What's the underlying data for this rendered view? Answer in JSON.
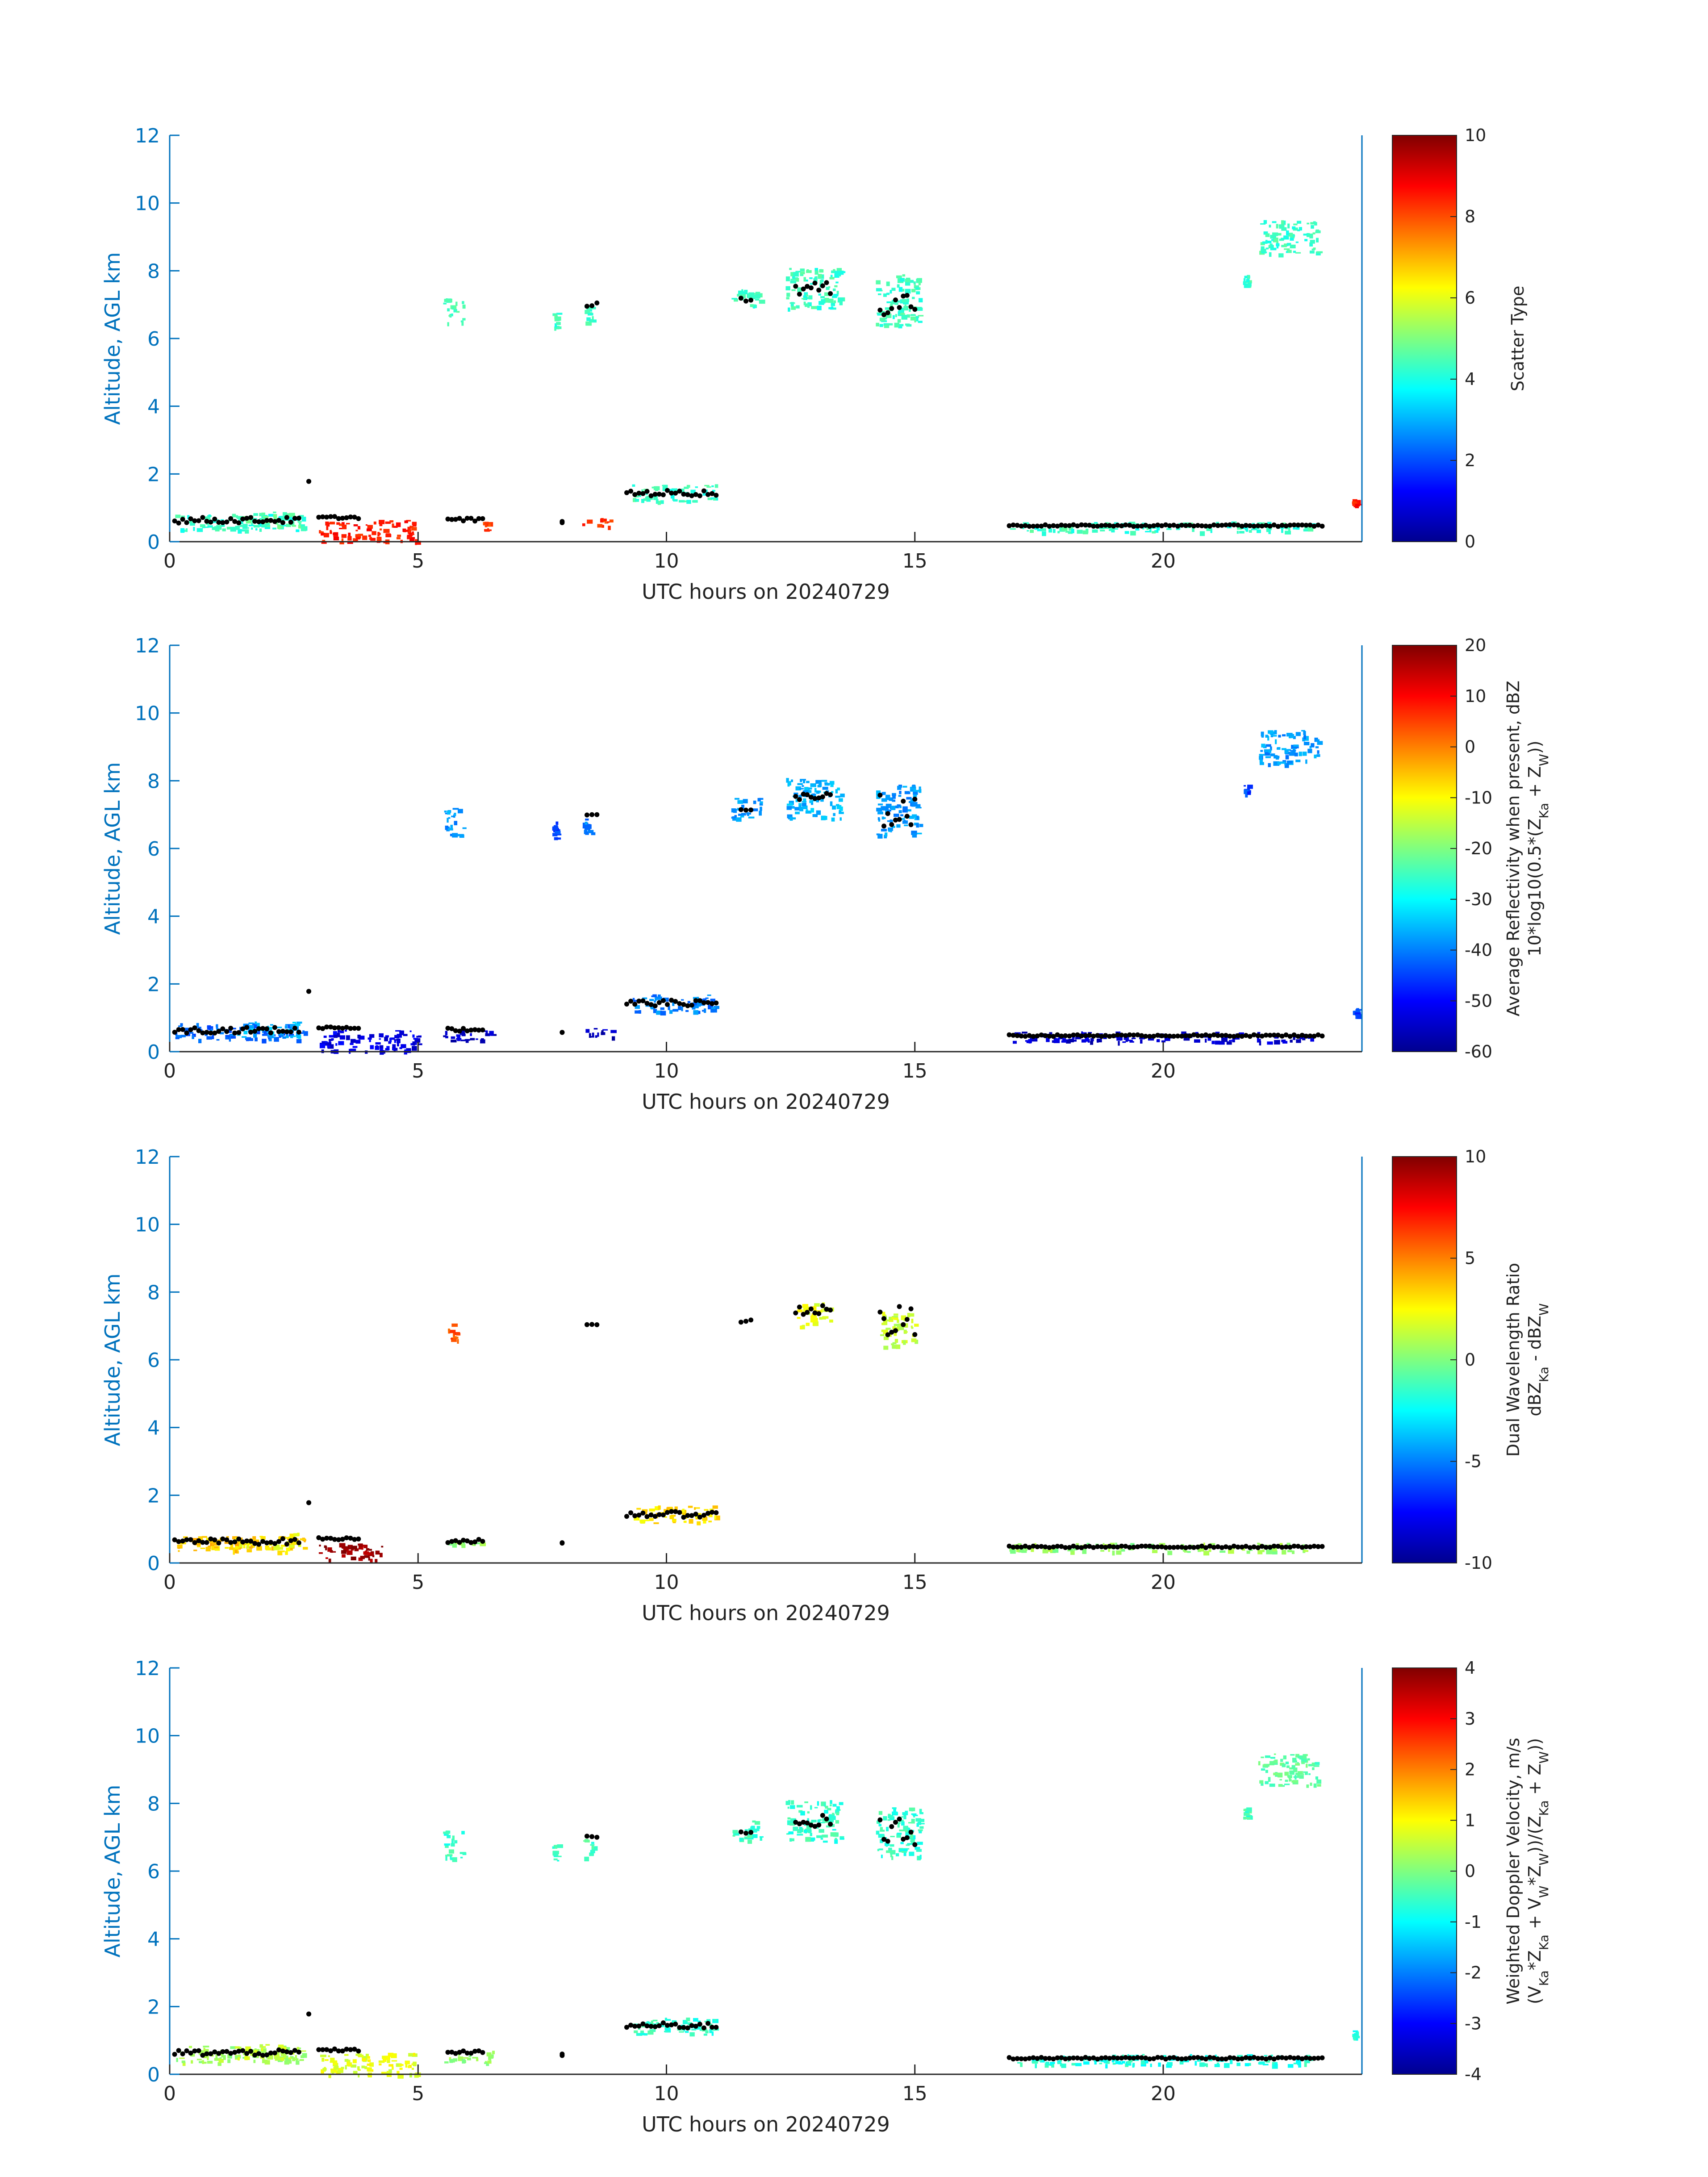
{
  "chart_data": [
    {
      "type": "heatmap",
      "xlabel": "UTC hours on 20240729",
      "ylabel": "Altitude, AGL km",
      "xlim": [
        0,
        24
      ],
      "ylim": [
        0,
        12
      ],
      "xticks": [
        "0",
        "5",
        "10",
        "15",
        "20"
      ],
      "yticks": [
        "0",
        "2",
        "4",
        "6",
        "8",
        "10",
        "12"
      ],
      "colorbar": {
        "label": [
          "Scatter Type"
        ],
        "range": [
          0,
          10
        ],
        "ticks": [
          "0",
          "2",
          "4",
          "6",
          "8",
          "10"
        ],
        "colormap": "jet"
      },
      "regions": [
        {
          "x": [
            0.1,
            2.7
          ],
          "y": [
            0.35,
            0.85
          ],
          "value": 4.2
        },
        {
          "x": [
            1.3,
            2.6
          ],
          "y": [
            0.45,
            0.9
          ],
          "value": 4.6
        },
        {
          "x": [
            3.0,
            5.0
          ],
          "y": [
            0.0,
            0.65
          ],
          "value": 8.5
        },
        {
          "x": [
            6.3,
            6.4
          ],
          "y": [
            0.35,
            0.6
          ],
          "value": 8.2
        },
        {
          "x": [
            8.3,
            8.9
          ],
          "y": [
            0.45,
            0.7
          ],
          "value": 8.2
        },
        {
          "x": [
            5.5,
            5.9
          ],
          "y": [
            6.4,
            7.2
          ],
          "value": 4.3
        },
        {
          "x": [
            7.7,
            7.8
          ],
          "y": [
            6.3,
            6.8
          ],
          "value": 4.3
        },
        {
          "x": [
            8.3,
            8.5
          ],
          "y": [
            6.4,
            7.0
          ],
          "value": 4.3
        },
        {
          "x": [
            9.3,
            11.0
          ],
          "y": [
            1.2,
            1.7
          ],
          "value": 4.3
        },
        {
          "x": [
            11.3,
            11.9
          ],
          "y": [
            6.9,
            7.5
          ],
          "value": 4.3
        },
        {
          "x": [
            12.4,
            13.5
          ],
          "y": [
            6.9,
            8.1
          ],
          "value": 4.3
        },
        {
          "x": [
            14.2,
            15.1
          ],
          "y": [
            6.4,
            7.9
          ],
          "value": 4.3
        },
        {
          "x": [
            16.9,
            23.0
          ],
          "y": [
            0.3,
            0.6
          ],
          "value": 4.3
        },
        {
          "x": [
            21.6,
            21.7
          ],
          "y": [
            7.6,
            7.9
          ],
          "value": 4.3
        },
        {
          "x": [
            21.9,
            23.1
          ],
          "y": [
            8.5,
            9.5
          ],
          "value": 4.3
        },
        {
          "x": [
            23.8,
            23.9
          ],
          "y": [
            1.1,
            1.3
          ],
          "value": 8.5
        }
      ],
      "black_markers": [
        {
          "x": [
            0.1,
            2.6
          ],
          "y": [
            0.55,
            0.72
          ]
        },
        {
          "x": [
            2.8,
            2.8
          ],
          "y": [
            1.78,
            1.78
          ]
        },
        {
          "x": [
            3.0,
            3.8
          ],
          "y": [
            0.68,
            0.75
          ]
        },
        {
          "x": [
            5.6,
            6.3
          ],
          "y": [
            0.6,
            0.7
          ]
        },
        {
          "x": [
            7.9,
            7.9
          ],
          "y": [
            0.55,
            0.6
          ]
        },
        {
          "x": [
            8.4,
            8.6
          ],
          "y": [
            6.95,
            7.05
          ]
        },
        {
          "x": [
            9.2,
            11.0
          ],
          "y": [
            1.35,
            1.52
          ]
        },
        {
          "x": [
            11.5,
            11.7
          ],
          "y": [
            7.1,
            7.2
          ]
        },
        {
          "x": [
            12.6,
            13.3
          ],
          "y": [
            7.3,
            7.65
          ]
        },
        {
          "x": [
            14.3,
            15.0
          ],
          "y": [
            6.6,
            7.6
          ]
        },
        {
          "x": [
            16.9,
            23.2
          ],
          "y": [
            0.45,
            0.5
          ]
        }
      ]
    },
    {
      "type": "heatmap",
      "xlabel": "UTC hours on 20240729",
      "ylabel": "Altitude, AGL km",
      "xlim": [
        0,
        24
      ],
      "ylim": [
        0,
        12
      ],
      "xticks": [
        "0",
        "5",
        "10",
        "15",
        "20"
      ],
      "yticks": [
        "0",
        "2",
        "4",
        "6",
        "8",
        "10",
        "12"
      ],
      "colorbar": {
        "label": [
          "Average Reflectivity when present, dBZ",
          "10*log10(0.5*(Z",
          "Ka",
          " + Z",
          "W",
          "))"
        ],
        "range": [
          -60,
          20
        ],
        "ticks": [
          "-60",
          "-50",
          "-40",
          "-30",
          "-20",
          "-10",
          "0",
          "10",
          "20"
        ],
        "colormap": "jet"
      },
      "regions": [
        {
          "x": [
            0.1,
            2.7
          ],
          "y": [
            0.35,
            0.85
          ],
          "value": -42
        },
        {
          "x": [
            1.3,
            2.6
          ],
          "y": [
            0.45,
            0.9
          ],
          "value": -35
        },
        {
          "x": [
            3.0,
            5.0
          ],
          "y": [
            0.0,
            0.65
          ],
          "value": -52
        },
        {
          "x": [
            5.5,
            6.5
          ],
          "y": [
            0.35,
            0.7
          ],
          "value": -55
        },
        {
          "x": [
            8.3,
            8.9
          ],
          "y": [
            0.45,
            0.7
          ],
          "value": -55
        },
        {
          "x": [
            5.5,
            5.9
          ],
          "y": [
            6.4,
            7.2
          ],
          "value": -38
        },
        {
          "x": [
            7.7,
            7.8
          ],
          "y": [
            6.3,
            6.8
          ],
          "value": -45
        },
        {
          "x": [
            8.3,
            8.5
          ],
          "y": [
            6.4,
            7.0
          ],
          "value": -40
        },
        {
          "x": [
            9.3,
            11.0
          ],
          "y": [
            1.2,
            1.7
          ],
          "value": -40
        },
        {
          "x": [
            11.3,
            11.9
          ],
          "y": [
            6.9,
            7.5
          ],
          "value": -38
        },
        {
          "x": [
            12.4,
            13.5
          ],
          "y": [
            6.9,
            8.1
          ],
          "value": -36
        },
        {
          "x": [
            14.2,
            15.1
          ],
          "y": [
            6.4,
            7.9
          ],
          "value": -38
        },
        {
          "x": [
            16.9,
            23.0
          ],
          "y": [
            0.3,
            0.6
          ],
          "value": -54
        },
        {
          "x": [
            21.6,
            21.7
          ],
          "y": [
            7.6,
            7.9
          ],
          "value": -45
        },
        {
          "x": [
            21.9,
            23.1
          ],
          "y": [
            8.5,
            9.5
          ],
          "value": -38
        },
        {
          "x": [
            23.8,
            23.9
          ],
          "y": [
            1.1,
            1.3
          ],
          "value": -45
        }
      ],
      "black_markers": [
        {
          "x": [
            0.1,
            2.6
          ],
          "y": [
            0.55,
            0.72
          ]
        },
        {
          "x": [
            2.8,
            2.8
          ],
          "y": [
            1.78,
            1.78
          ]
        },
        {
          "x": [
            3.0,
            3.8
          ],
          "y": [
            0.68,
            0.75
          ]
        },
        {
          "x": [
            5.6,
            6.3
          ],
          "y": [
            0.6,
            0.7
          ]
        },
        {
          "x": [
            7.9,
            7.9
          ],
          "y": [
            0.55,
            0.6
          ]
        },
        {
          "x": [
            8.4,
            8.6
          ],
          "y": [
            6.95,
            7.05
          ]
        },
        {
          "x": [
            9.2,
            11.0
          ],
          "y": [
            1.35,
            1.52
          ]
        },
        {
          "x": [
            11.5,
            11.7
          ],
          "y": [
            7.1,
            7.2
          ]
        },
        {
          "x": [
            12.6,
            13.3
          ],
          "y": [
            7.3,
            7.65
          ]
        },
        {
          "x": [
            14.3,
            15.0
          ],
          "y": [
            6.6,
            7.6
          ]
        },
        {
          "x": [
            16.9,
            23.2
          ],
          "y": [
            0.45,
            0.5
          ]
        }
      ]
    },
    {
      "type": "heatmap",
      "xlabel": "UTC hours on 20240729",
      "ylabel": "Altitude, AGL km",
      "xlim": [
        0,
        24
      ],
      "ylim": [
        0,
        12
      ],
      "xticks": [
        "0",
        "5",
        "10",
        "15",
        "20"
      ],
      "yticks": [
        "0",
        "2",
        "4",
        "6",
        "8",
        "10",
        "12"
      ],
      "colorbar": {
        "label": [
          "Dual Wavelength Ratio",
          "dBZ",
          "Ka",
          " - dBZ",
          "W"
        ],
        "range": [
          -10,
          10
        ],
        "ticks": [
          "-10",
          "-5",
          "0",
          "5",
          "10"
        ],
        "colormap": "jet"
      },
      "regions": [
        {
          "x": [
            0.1,
            2.7
          ],
          "y": [
            0.35,
            0.8
          ],
          "value": 3.5
        },
        {
          "x": [
            1.3,
            2.6
          ],
          "y": [
            0.45,
            0.9
          ],
          "value": 2.5
        },
        {
          "x": [
            3.0,
            4.3
          ],
          "y": [
            0.1,
            0.6
          ],
          "value": 9.5
        },
        {
          "x": [
            5.6,
            6.3
          ],
          "y": [
            0.55,
            0.7
          ],
          "value": 0.5
        },
        {
          "x": [
            5.6,
            5.8
          ],
          "y": [
            6.6,
            7.1
          ],
          "value": 6.0
        },
        {
          "x": [
            9.3,
            11.0
          ],
          "y": [
            1.2,
            1.7
          ],
          "value": 3.0
        },
        {
          "x": [
            12.6,
            13.3
          ],
          "y": [
            7.0,
            7.7
          ],
          "value": 2.0
        },
        {
          "x": [
            14.3,
            15.0
          ],
          "y": [
            6.4,
            7.5
          ],
          "value": 1.5
        },
        {
          "x": [
            16.9,
            23.0
          ],
          "y": [
            0.35,
            0.6
          ],
          "value": 0.5
        }
      ],
      "black_markers": [
        {
          "x": [
            0.1,
            2.6
          ],
          "y": [
            0.55,
            0.72
          ]
        },
        {
          "x": [
            2.8,
            2.8
          ],
          "y": [
            1.78,
            1.78
          ]
        },
        {
          "x": [
            3.0,
            3.8
          ],
          "y": [
            0.68,
            0.75
          ]
        },
        {
          "x": [
            5.6,
            6.3
          ],
          "y": [
            0.6,
            0.7
          ]
        },
        {
          "x": [
            7.9,
            7.9
          ],
          "y": [
            0.55,
            0.6
          ]
        },
        {
          "x": [
            8.4,
            8.6
          ],
          "y": [
            6.95,
            7.05
          ]
        },
        {
          "x": [
            9.2,
            11.0
          ],
          "y": [
            1.35,
            1.52
          ]
        },
        {
          "x": [
            11.5,
            11.7
          ],
          "y": [
            7.1,
            7.2
          ]
        },
        {
          "x": [
            12.6,
            13.3
          ],
          "y": [
            7.3,
            7.65
          ]
        },
        {
          "x": [
            14.3,
            15.0
          ],
          "y": [
            6.6,
            7.6
          ]
        },
        {
          "x": [
            16.9,
            23.2
          ],
          "y": [
            0.45,
            0.5
          ]
        }
      ]
    },
    {
      "type": "heatmap",
      "xlabel": "UTC hours on 20240729",
      "ylabel": "Altitude, AGL km",
      "xlim": [
        0,
        24
      ],
      "ylim": [
        0,
        12
      ],
      "xticks": [
        "0",
        "5",
        "10",
        "15",
        "20"
      ],
      "yticks": [
        "0",
        "2",
        "4",
        "6",
        "8",
        "10",
        "12"
      ],
      "colorbar": {
        "label": [
          "Weighted Doppler Velocity, m/s",
          "(V",
          "Ka",
          "*Z",
          "Ka",
          " + V",
          "W",
          "*Z",
          "W",
          "))/(Z",
          "Ka",
          " + Z",
          "W",
          "))"
        ],
        "range": [
          -4,
          4
        ],
        "ticks": [
          "-4",
          "-3",
          "-2",
          "-1",
          "0",
          "1",
          "2",
          "3",
          "4"
        ],
        "colormap": "jet"
      },
      "regions": [
        {
          "x": [
            0.1,
            2.7
          ],
          "y": [
            0.35,
            0.85
          ],
          "value": 0.3
        },
        {
          "x": [
            1.3,
            2.6
          ],
          "y": [
            0.45,
            0.9
          ],
          "value": 0.6
        },
        {
          "x": [
            3.0,
            5.0
          ],
          "y": [
            0.0,
            0.65
          ],
          "value": 0.8
        },
        {
          "x": [
            5.5,
            6.5
          ],
          "y": [
            0.35,
            0.7
          ],
          "value": 0.2
        },
        {
          "x": [
            5.5,
            5.9
          ],
          "y": [
            6.4,
            7.2
          ],
          "value": -0.6
        },
        {
          "x": [
            7.7,
            7.8
          ],
          "y": [
            6.3,
            6.8
          ],
          "value": -0.5
        },
        {
          "x": [
            8.3,
            8.5
          ],
          "y": [
            6.4,
            7.0
          ],
          "value": -0.5
        },
        {
          "x": [
            9.3,
            11.0
          ],
          "y": [
            1.2,
            1.7
          ],
          "value": -0.6
        },
        {
          "x": [
            11.3,
            11.9
          ],
          "y": [
            6.9,
            7.5
          ],
          "value": -0.6
        },
        {
          "x": [
            12.4,
            13.5
          ],
          "y": [
            6.9,
            8.1
          ],
          "value": -0.6
        },
        {
          "x": [
            14.2,
            15.1
          ],
          "y": [
            6.4,
            7.9
          ],
          "value": -0.6
        },
        {
          "x": [
            16.9,
            23.0
          ],
          "y": [
            0.3,
            0.6
          ],
          "value": -0.7
        },
        {
          "x": [
            21.6,
            21.7
          ],
          "y": [
            7.6,
            7.9
          ],
          "value": -0.5
        },
        {
          "x": [
            21.9,
            23.1
          ],
          "y": [
            8.5,
            9.5
          ],
          "value": -0.3
        },
        {
          "x": [
            23.8,
            23.9
          ],
          "y": [
            1.1,
            1.3
          ],
          "value": -0.8
        }
      ],
      "black_markers": [
        {
          "x": [
            0.1,
            2.6
          ],
          "y": [
            0.55,
            0.72
          ]
        },
        {
          "x": [
            2.8,
            2.8
          ],
          "y": [
            1.78,
            1.78
          ]
        },
        {
          "x": [
            3.0,
            3.8
          ],
          "y": [
            0.68,
            0.75
          ]
        },
        {
          "x": [
            5.6,
            6.3
          ],
          "y": [
            0.6,
            0.7
          ]
        },
        {
          "x": [
            7.9,
            7.9
          ],
          "y": [
            0.55,
            0.6
          ]
        },
        {
          "x": [
            8.4,
            8.6
          ],
          "y": [
            6.95,
            7.05
          ]
        },
        {
          "x": [
            9.2,
            11.0
          ],
          "y": [
            1.35,
            1.52
          ]
        },
        {
          "x": [
            11.5,
            11.7
          ],
          "y": [
            7.1,
            7.2
          ]
        },
        {
          "x": [
            12.6,
            13.3
          ],
          "y": [
            7.3,
            7.65
          ]
        },
        {
          "x": [
            14.3,
            15.0
          ],
          "y": [
            6.6,
            7.6
          ]
        },
        {
          "x": [
            16.9,
            23.2
          ],
          "y": [
            0.45,
            0.5
          ]
        }
      ]
    }
  ],
  "colors": {
    "axis": "#0072BD",
    "marker": "#000000"
  }
}
